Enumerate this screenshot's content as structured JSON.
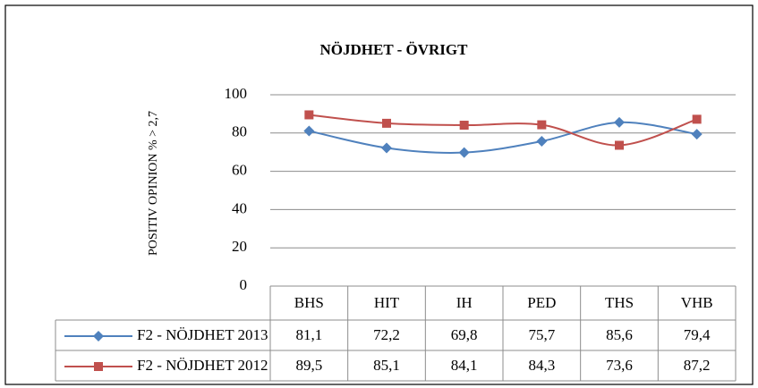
{
  "chart_data": {
    "type": "line",
    "title": "NÖJDHET - ÖVRIGT",
    "y_label": "POSITIV OPINION % > 2,7",
    "categories": [
      "BHS",
      "HIT",
      "IH",
      "PED",
      "THS",
      "VHB"
    ],
    "series": [
      {
        "name": "F2 - NÖJDHET 2013",
        "color": "#4f81bd",
        "marker": "diamond",
        "values": [
          81.1,
          72.2,
          69.8,
          75.7,
          85.6,
          79.4
        ],
        "value_labels": [
          "81,1",
          "72,2",
          "69,8",
          "75,7",
          "85,6",
          "79,4"
        ]
      },
      {
        "name": "F2 - NÖJDHET 2012",
        "color": "#c0504d",
        "marker": "square",
        "values": [
          89.5,
          85.1,
          84.1,
          84.3,
          73.6,
          87.2
        ],
        "value_labels": [
          "89,5",
          "85,1",
          "84,1",
          "84,3",
          "73,6",
          "87,2"
        ]
      }
    ],
    "ylim": [
      0,
      100
    ],
    "yticks": [
      0,
      20,
      40,
      60,
      80,
      100
    ],
    "grid": true,
    "smooth": true,
    "data_table": true
  }
}
